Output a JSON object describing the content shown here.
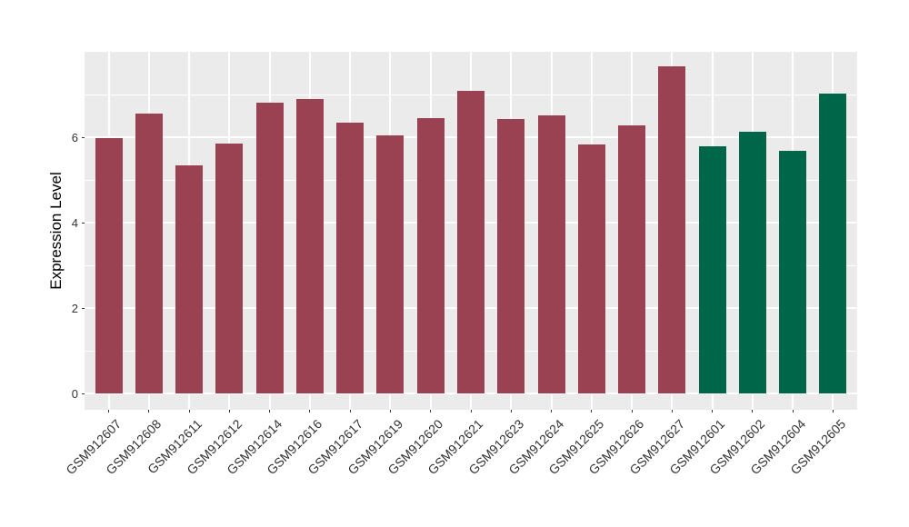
{
  "chart_data": {
    "type": "bar",
    "ylabel": "Expression Level",
    "xlabel": "",
    "categories": [
      "GSM912607",
      "GSM912608",
      "GSM912611",
      "GSM912612",
      "GSM912614",
      "GSM912616",
      "GSM912617",
      "GSM912619",
      "GSM912620",
      "GSM912621",
      "GSM912623",
      "GSM912624",
      "GSM912625",
      "GSM912626",
      "GSM912627",
      "GSM912601",
      "GSM912602",
      "GSM912604",
      "GSM912605"
    ],
    "values": [
      5.98,
      6.55,
      5.34,
      5.85,
      6.8,
      6.9,
      6.35,
      6.05,
      6.45,
      7.08,
      6.42,
      6.52,
      5.83,
      6.27,
      7.66,
      5.79,
      6.13,
      5.68,
      7.03
    ],
    "bar_groups": [
      0,
      0,
      0,
      0,
      0,
      0,
      0,
      0,
      0,
      0,
      0,
      0,
      0,
      0,
      0,
      1,
      1,
      1,
      1
    ],
    "group_colors": [
      "#9A4252",
      "#00664A"
    ],
    "y_ticks": [
      "0",
      "2",
      "4",
      "6"
    ],
    "y_tick_values": [
      0,
      2,
      4,
      6
    ],
    "y_minor_tick_values": [
      1,
      3,
      5,
      7
    ],
    "ylim": [
      -0.38,
      8.0
    ],
    "legend": "none",
    "grid": true,
    "panel_bg": "#EBEBEB",
    "grid_color": "#FFFFFF",
    "tick_label_color": "#333333",
    "axis_title_color": "#000000",
    "figure_bg": "#FFFFFF"
  }
}
